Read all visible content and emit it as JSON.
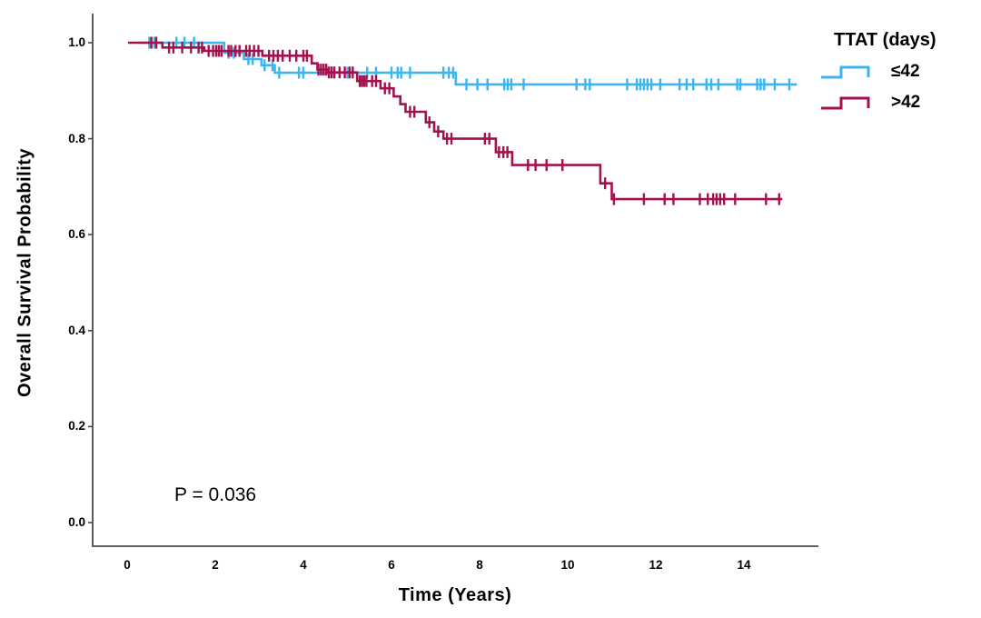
{
  "figure": {
    "ylabel": "Overall Survival Probability",
    "xlabel": "Time (Years)",
    "annotation": "P = 0.036",
    "legend": {
      "title": "TTAT (days)",
      "entries": [
        {
          "label": "≤42"
        },
        {
          "label": ">42"
        }
      ]
    }
  },
  "chart_data": {
    "type": "line",
    "subtype": "kaplan-meier-step",
    "title": "",
    "xlabel": "Time (Years)",
    "ylabel": "Overall Survival Probability",
    "xlim": [
      0,
      15.7
    ],
    "ylim": [
      0,
      1.06
    ],
    "x_ticks": [
      0,
      2,
      4,
      6,
      8,
      10,
      12,
      14
    ],
    "y_ticks": [
      "0.0",
      "0.2",
      "0.4",
      "0.6",
      "0.8",
      "1.0"
    ],
    "grid": false,
    "legend_position": "top-right-outside",
    "annotations": [
      {
        "text": "P = 0.036",
        "x": 1.1,
        "y": 0.06
      }
    ],
    "axis_color": "#4a4a4b",
    "series": [
      {
        "name": "≤42",
        "color": "#3BB5F1",
        "steps": [
          [
            0.3,
            1.0
          ],
          [
            2.2,
            0.979
          ],
          [
            2.65,
            0.966
          ],
          [
            3.05,
            0.953
          ],
          [
            3.35,
            0.9375
          ],
          [
            7.46,
            0.913
          ],
          [
            15.2,
            0.913
          ]
        ],
        "censor_times": [
          0.5,
          0.62,
          1.12,
          1.3,
          1.52,
          2.3,
          2.42,
          2.75,
          2.85,
          3.12,
          3.3,
          3.45,
          3.9,
          4.0,
          4.7,
          5.0,
          5.45,
          5.65,
          6.0,
          6.14,
          6.22,
          6.42,
          7.18,
          7.3,
          7.4,
          7.7,
          7.95,
          8.18,
          8.56,
          8.64,
          8.72,
          9.0,
          10.2,
          10.4,
          10.5,
          11.35,
          11.57,
          11.65,
          11.73,
          11.81,
          11.9,
          12.1,
          12.54,
          12.7,
          12.85,
          13.15,
          13.26,
          13.42,
          13.85,
          13.92,
          14.3,
          14.38,
          14.46,
          14.7,
          15.03
        ]
      },
      {
        "name": ">42",
        "color": "#A3124E",
        "steps": [
          [
            0.02,
            1.0
          ],
          [
            0.8,
            0.99
          ],
          [
            1.75,
            0.983
          ],
          [
            3.07,
            0.973
          ],
          [
            4.19,
            0.957
          ],
          [
            4.32,
            0.944
          ],
          [
            4.55,
            0.938
          ],
          [
            5.22,
            0.92
          ],
          [
            5.75,
            0.905
          ],
          [
            6.05,
            0.888
          ],
          [
            6.2,
            0.872
          ],
          [
            6.32,
            0.856
          ],
          [
            6.78,
            0.834
          ],
          [
            6.97,
            0.815
          ],
          [
            7.18,
            0.8
          ],
          [
            8.37,
            0.772
          ],
          [
            8.74,
            0.745
          ],
          [
            10.74,
            0.707
          ],
          [
            11.0,
            0.674
          ],
          [
            14.87,
            0.674
          ]
        ],
        "censor_times": [
          0.55,
          0.66,
          0.95,
          1.05,
          1.25,
          1.45,
          1.62,
          1.7,
          1.85,
          1.95,
          2.02,
          2.08,
          2.14,
          2.3,
          2.36,
          2.46,
          2.55,
          2.7,
          2.78,
          2.88,
          2.98,
          3.22,
          3.32,
          3.42,
          3.53,
          3.69,
          3.84,
          4.0,
          4.08,
          4.34,
          4.4,
          4.46,
          4.52,
          4.58,
          4.64,
          4.7,
          4.82,
          4.94,
          5.05,
          5.12,
          5.28,
          5.33,
          5.38,
          5.43,
          5.56,
          5.65,
          5.85,
          5.95,
          6.42,
          6.52,
          6.86,
          7.06,
          7.26,
          7.36,
          8.12,
          8.22,
          8.44,
          8.54,
          8.63,
          9.1,
          9.27,
          9.52,
          9.88,
          10.85,
          11.05,
          11.73,
          12.2,
          12.4,
          13.0,
          13.18,
          13.3,
          13.38,
          13.46,
          13.55,
          13.8,
          14.5,
          14.8
        ]
      }
    ]
  }
}
